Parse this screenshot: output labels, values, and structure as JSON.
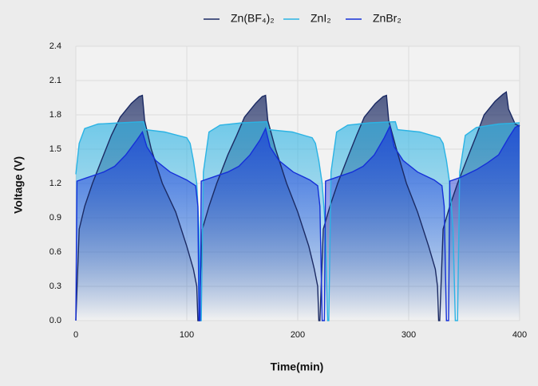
{
  "chart_data": {
    "type": "line",
    "x_label": "Time(min)",
    "y_label": "Voltage (V)",
    "xlim": [
      0,
      400
    ],
    "ylim": [
      0,
      2.4
    ],
    "xticks": [
      0,
      100,
      200,
      300,
      400
    ],
    "yticks": [
      {
        "value": 0,
        "label": "0.0"
      },
      0.3,
      0.6,
      0.9,
      1.2,
      1.5,
      1.8,
      2.1,
      2.4
    ],
    "grid": true,
    "legend": "top",
    "series": [
      {
        "name": "Zn(BF₄)₂",
        "color": "#1b2a63",
        "x": [
          0,
          3,
          8,
          15,
          25,
          32,
          40,
          50,
          57,
          60,
          62,
          68,
          78,
          90,
          100,
          106,
          109,
          110,
          111,
          114,
          120,
          127,
          137,
          145,
          152,
          162,
          168,
          171,
          173,
          180,
          190,
          200,
          210,
          215,
          218,
          219,
          220,
          223,
          229,
          236,
          246,
          253,
          260,
          270,
          277,
          280,
          282,
          289,
          298,
          308,
          318,
          324,
          326,
          327,
          328,
          331,
          337,
          344,
          354,
          361,
          368,
          378,
          385,
          388,
          390,
          396,
          400
        ],
        "values": [
          0,
          0.8,
          1.0,
          1.2,
          1.45,
          1.62,
          1.78,
          1.9,
          1.96,
          1.97,
          1.75,
          1.5,
          1.2,
          0.95,
          0.65,
          0.45,
          0.3,
          0,
          0,
          0.8,
          1.0,
          1.2,
          1.45,
          1.62,
          1.78,
          1.9,
          1.96,
          1.97,
          1.75,
          1.5,
          1.2,
          0.95,
          0.65,
          0.45,
          0.3,
          0,
          0,
          0.8,
          1.0,
          1.2,
          1.45,
          1.62,
          1.78,
          1.9,
          1.96,
          1.97,
          1.75,
          1.5,
          1.2,
          0.95,
          0.65,
          0.45,
          0.3,
          0,
          0,
          0.8,
          1.0,
          1.2,
          1.45,
          1.62,
          1.8,
          1.92,
          1.98,
          2.0,
          1.85,
          1.72,
          1.7
        ]
      },
      {
        "name": "ZnI₂",
        "color": "#2bb3e4",
        "x": [
          0,
          3,
          8,
          20,
          40,
          61,
          63,
          80,
          100,
          103,
          106,
          109,
          111,
          112,
          113,
          115,
          120,
          130,
          150,
          172,
          174,
          195,
          213,
          216,
          219,
          222,
          225,
          227,
          228,
          230,
          235,
          245,
          265,
          288,
          290,
          310,
          328,
          331,
          334,
          337,
          340,
          342,
          344,
          346,
          351,
          361,
          381,
          400
        ],
        "values": [
          1.28,
          1.55,
          1.68,
          1.72,
          1.73,
          1.74,
          1.67,
          1.65,
          1.6,
          1.55,
          1.4,
          1.2,
          0.8,
          0,
          0,
          1.3,
          1.65,
          1.71,
          1.73,
          1.74,
          1.67,
          1.65,
          1.6,
          1.55,
          1.4,
          1.2,
          0.8,
          0,
          0,
          1.3,
          1.65,
          1.71,
          1.73,
          1.74,
          1.67,
          1.65,
          1.6,
          1.55,
          1.4,
          1.2,
          0.8,
          0,
          0,
          1.3,
          1.62,
          1.69,
          1.72,
          1.73
        ]
      },
      {
        "name": "ZnBr₂",
        "color": "#1530d8",
        "x": [
          0,
          1,
          10,
          25,
          35,
          45,
          55,
          60,
          64,
          72,
          85,
          100,
          108,
          110,
          111,
          112,
          113,
          122,
          137,
          147,
          157,
          166,
          171,
          175,
          183,
          196,
          211,
          218,
          220,
          222,
          224,
          225,
          234,
          249,
          259,
          269,
          278,
          283,
          287,
          295,
          308,
          323,
          330,
          332,
          334,
          336,
          337,
          346,
          361,
          371,
          381,
          390,
          396,
          400
        ],
        "values": [
          0,
          1.22,
          1.25,
          1.3,
          1.35,
          1.45,
          1.58,
          1.65,
          1.52,
          1.4,
          1.3,
          1.23,
          1.18,
          1.0,
          0,
          0,
          1.22,
          1.25,
          1.3,
          1.35,
          1.45,
          1.58,
          1.68,
          1.52,
          1.4,
          1.3,
          1.23,
          1.18,
          1.0,
          0,
          0,
          1.22,
          1.25,
          1.3,
          1.35,
          1.45,
          1.6,
          1.7,
          1.52,
          1.4,
          1.3,
          1.23,
          1.18,
          1.0,
          0,
          0,
          1.22,
          1.25,
          1.32,
          1.38,
          1.45,
          1.6,
          1.69,
          1.71
        ]
      }
    ]
  }
}
